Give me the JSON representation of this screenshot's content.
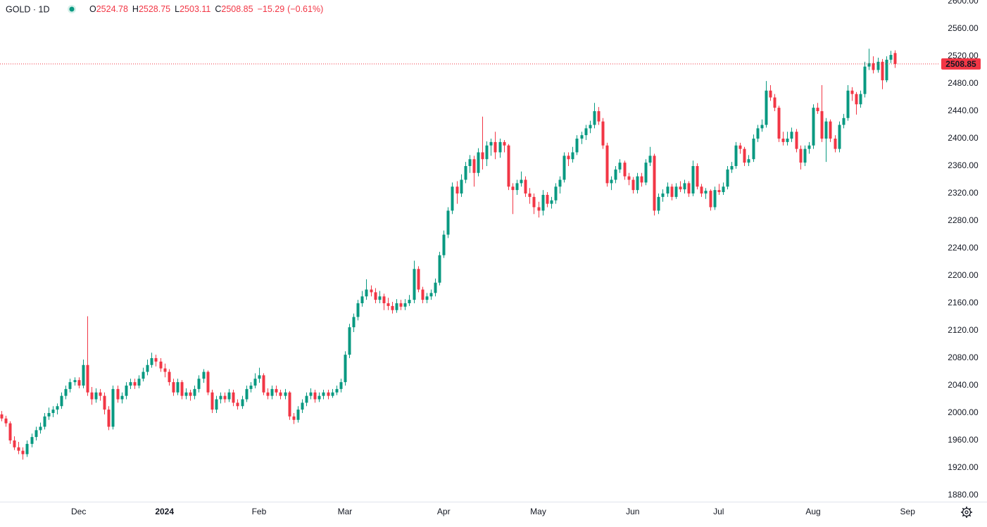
{
  "chart_data": {
    "type": "candlestick",
    "ohlc_legend": {
      "symbol": "GOLD · 1D",
      "items": [
        {
          "label": "O",
          "value": 2524.78
        },
        {
          "label": "H",
          "value": 2528.75
        },
        {
          "label": "L",
          "value": 2503.11
        },
        {
          "label": "C",
          "value": 2508.85
        }
      ],
      "change": "−15.29",
      "change_pct": "(−0.61%)"
    },
    "up_color": "#089981",
    "down_color": "#f23645",
    "grid": false,
    "last_price": 2508.85,
    "last_price_color": "#f23645",
    "ylim": [
      1880,
      2600
    ],
    "yticks": [
      {
        "value": 1880,
        "label": "1880.00"
      },
      {
        "value": 1920,
        "label": "1920.00"
      },
      {
        "value": 1960,
        "label": "1960.00"
      },
      {
        "value": 2000,
        "label": "2000.00"
      },
      {
        "value": 2040,
        "label": "2040.00"
      },
      {
        "value": 2080,
        "label": "2080.00"
      },
      {
        "value": 2120,
        "label": "2120.00"
      },
      {
        "value": 2160,
        "label": "2160.00"
      },
      {
        "value": 2200,
        "label": "2200.00"
      },
      {
        "value": 2240,
        "label": "2240.00"
      },
      {
        "value": 2280,
        "label": "2280.00"
      },
      {
        "value": 2320,
        "label": "2320.00"
      },
      {
        "value": 2360,
        "label": "2360.00"
      },
      {
        "value": 2400,
        "label": "2400.00"
      },
      {
        "value": 2440,
        "label": "2440.00"
      },
      {
        "value": 2480,
        "label": "2480.00"
      },
      {
        "value": 2520,
        "label": "2520.00"
      },
      {
        "value": 2560,
        "label": "2560.00"
      },
      {
        "value": 2600,
        "label": "2600.00"
      }
    ],
    "xlim": [
      -0.3,
      218.5
    ],
    "xticks": [
      {
        "value": 18,
        "label": "Dec"
      },
      {
        "value": 38,
        "label": "2024"
      },
      {
        "value": 60,
        "label": "Feb"
      },
      {
        "value": 80,
        "label": "Mar"
      },
      {
        "value": 103,
        "label": "Apr"
      },
      {
        "value": 125,
        "label": "May"
      },
      {
        "value": 147,
        "label": "Jun"
      },
      {
        "value": 167,
        "label": "Jul"
      },
      {
        "value": 189,
        "label": "Aug"
      },
      {
        "value": 211,
        "label": "Sep"
      }
    ],
    "ohlc": [
      [
        1998,
        2003,
        1988,
        1992
      ],
      [
        1992,
        1996,
        1980,
        1985
      ],
      [
        1985,
        1988,
        1955,
        1960
      ],
      [
        1960,
        1966,
        1946,
        1950
      ],
      [
        1950,
        1958,
        1940,
        1945
      ],
      [
        1945,
        1950,
        1932,
        1940
      ],
      [
        1940,
        1960,
        1936,
        1955
      ],
      [
        1955,
        1970,
        1950,
        1965
      ],
      [
        1965,
        1980,
        1960,
        1975
      ],
      [
        1975,
        1986,
        1970,
        1980
      ],
      [
        1980,
        2000,
        1976,
        1995
      ],
      [
        1995,
        2008,
        1990,
        2000
      ],
      [
        2000,
        2010,
        1994,
        2005
      ],
      [
        2005,
        2014,
        1998,
        2010
      ],
      [
        2010,
        2030,
        2006,
        2025
      ],
      [
        2025,
        2040,
        2020,
        2035
      ],
      [
        2035,
        2050,
        2030,
        2045
      ],
      [
        2045,
        2052,
        2040,
        2048
      ],
      [
        2048,
        2052,
        2036,
        2040
      ],
      [
        2040,
        2078,
        2036,
        2070
      ],
      [
        2070,
        2141,
        2025,
        2030
      ],
      [
        2030,
        2038,
        2012,
        2020
      ],
      [
        2020,
        2036,
        2015,
        2030
      ],
      [
        2030,
        2035,
        2018,
        2025
      ],
      [
        2025,
        2030,
        1998,
        2005
      ],
      [
        2005,
        2010,
        1975,
        1980
      ],
      [
        1980,
        2040,
        1976,
        2035
      ],
      [
        2035,
        2040,
        2015,
        2020
      ],
      [
        2020,
        2030,
        2014,
        2025
      ],
      [
        2025,
        2045,
        2020,
        2040
      ],
      [
        2040,
        2050,
        2035,
        2045
      ],
      [
        2045,
        2050,
        2035,
        2040
      ],
      [
        2040,
        2055,
        2036,
        2050
      ],
      [
        2050,
        2066,
        2046,
        2060
      ],
      [
        2060,
        2078,
        2055,
        2070
      ],
      [
        2070,
        2088,
        2066,
        2080
      ],
      [
        2080,
        2085,
        2068,
        2075
      ],
      [
        2075,
        2080,
        2060,
        2065
      ],
      [
        2065,
        2072,
        2052,
        2060
      ],
      [
        2060,
        2064,
        2040,
        2045
      ],
      [
        2045,
        2050,
        2025,
        2030
      ],
      [
        2030,
        2050,
        2026,
        2045
      ],
      [
        2045,
        2048,
        2020,
        2025
      ],
      [
        2025,
        2036,
        2020,
        2030
      ],
      [
        2030,
        2034,
        2018,
        2025
      ],
      [
        2025,
        2040,
        2020,
        2035
      ],
      [
        2035,
        2055,
        2030,
        2050
      ],
      [
        2050,
        2064,
        2044,
        2060
      ],
      [
        2060,
        2062,
        2026,
        2030
      ],
      [
        2030,
        2034,
        2000,
        2005
      ],
      [
        2005,
        2025,
        2000,
        2020
      ],
      [
        2020,
        2030,
        2014,
        2025
      ],
      [
        2025,
        2030,
        2015,
        2020
      ],
      [
        2020,
        2035,
        2016,
        2030
      ],
      [
        2030,
        2034,
        2010,
        2015
      ],
      [
        2015,
        2020,
        2005,
        2010
      ],
      [
        2010,
        2025,
        2006,
        2020
      ],
      [
        2020,
        2040,
        2016,
        2035
      ],
      [
        2035,
        2045,
        2030,
        2040
      ],
      [
        2040,
        2058,
        2036,
        2050
      ],
      [
        2050,
        2066,
        2044,
        2055
      ],
      [
        2055,
        2058,
        2026,
        2030
      ],
      [
        2030,
        2036,
        2020,
        2025
      ],
      [
        2025,
        2040,
        2020,
        2035
      ],
      [
        2035,
        2040,
        2025,
        2030
      ],
      [
        2030,
        2034,
        2020,
        2025
      ],
      [
        2025,
        2035,
        2020,
        2030
      ],
      [
        2030,
        2032,
        1990,
        1995
      ],
      [
        1995,
        2000,
        1984,
        1990
      ],
      [
        1990,
        2010,
        1986,
        2005
      ],
      [
        2005,
        2020,
        2000,
        2015
      ],
      [
        2015,
        2030,
        2010,
        2025
      ],
      [
        2025,
        2036,
        2020,
        2030
      ],
      [
        2030,
        2034,
        2015,
        2020
      ],
      [
        2020,
        2030,
        2016,
        2025
      ],
      [
        2025,
        2034,
        2020,
        2030
      ],
      [
        2030,
        2034,
        2020,
        2025
      ],
      [
        2025,
        2035,
        2022,
        2030
      ],
      [
        2030,
        2040,
        2026,
        2035
      ],
      [
        2035,
        2050,
        2030,
        2045
      ],
      [
        2045,
        2090,
        2040,
        2085
      ],
      [
        2085,
        2130,
        2080,
        2125
      ],
      [
        2125,
        2145,
        2118,
        2140
      ],
      [
        2140,
        2165,
        2135,
        2160
      ],
      [
        2160,
        2178,
        2155,
        2170
      ],
      [
        2170,
        2195,
        2165,
        2180
      ],
      [
        2180,
        2186,
        2170,
        2176
      ],
      [
        2176,
        2182,
        2160,
        2165
      ],
      [
        2165,
        2178,
        2160,
        2170
      ],
      [
        2170,
        2174,
        2150,
        2160
      ],
      [
        2160,
        2168,
        2150,
        2156
      ],
      [
        2156,
        2162,
        2145,
        2150
      ],
      [
        2150,
        2166,
        2146,
        2160
      ],
      [
        2160,
        2165,
        2150,
        2155
      ],
      [
        2155,
        2166,
        2150,
        2160
      ],
      [
        2160,
        2172,
        2156,
        2165
      ],
      [
        2165,
        2222,
        2160,
        2210
      ],
      [
        2210,
        2214,
        2176,
        2180
      ],
      [
        2180,
        2184,
        2160,
        2165
      ],
      [
        2165,
        2175,
        2160,
        2170
      ],
      [
        2170,
        2180,
        2165,
        2175
      ],
      [
        2175,
        2196,
        2170,
        2190
      ],
      [
        2190,
        2235,
        2186,
        2230
      ],
      [
        2230,
        2266,
        2226,
        2260
      ],
      [
        2260,
        2300,
        2255,
        2295
      ],
      [
        2295,
        2336,
        2290,
        2330
      ],
      [
        2330,
        2338,
        2305,
        2320
      ],
      [
        2320,
        2348,
        2315,
        2340
      ],
      [
        2340,
        2366,
        2335,
        2360
      ],
      [
        2360,
        2376,
        2350,
        2370
      ],
      [
        2370,
        2375,
        2330,
        2350
      ],
      [
        2350,
        2386,
        2345,
        2380
      ],
      [
        2380,
        2432,
        2355,
        2370
      ],
      [
        2370,
        2396,
        2360,
        2390
      ],
      [
        2390,
        2400,
        2375,
        2395
      ],
      [
        2395,
        2410,
        2370,
        2380
      ],
      [
        2380,
        2400,
        2372,
        2395
      ],
      [
        2395,
        2398,
        2380,
        2390
      ],
      [
        2390,
        2392,
        2325,
        2330
      ],
      [
        2330,
        2335,
        2290,
        2325
      ],
      [
        2325,
        2340,
        2318,
        2335
      ],
      [
        2335,
        2352,
        2330,
        2340
      ],
      [
        2340,
        2345,
        2315,
        2320
      ],
      [
        2320,
        2328,
        2305,
        2315
      ],
      [
        2315,
        2320,
        2290,
        2300
      ],
      [
        2300,
        2308,
        2285,
        2295
      ],
      [
        2295,
        2325,
        2288,
        2318
      ],
      [
        2318,
        2322,
        2300,
        2305
      ],
      [
        2305,
        2315,
        2298,
        2310
      ],
      [
        2310,
        2335,
        2305,
        2330
      ],
      [
        2330,
        2345,
        2320,
        2340
      ],
      [
        2340,
        2380,
        2336,
        2375
      ],
      [
        2375,
        2380,
        2360,
        2370
      ],
      [
        2370,
        2388,
        2365,
        2380
      ],
      [
        2380,
        2405,
        2376,
        2400
      ],
      [
        2400,
        2410,
        2392,
        2405
      ],
      [
        2405,
        2420,
        2398,
        2415
      ],
      [
        2415,
        2426,
        2408,
        2420
      ],
      [
        2420,
        2452,
        2415,
        2440
      ],
      [
        2440,
        2446,
        2420,
        2425
      ],
      [
        2425,
        2430,
        2385,
        2390
      ],
      [
        2390,
        2394,
        2330,
        2335
      ],
      [
        2335,
        2345,
        2325,
        2340
      ],
      [
        2340,
        2360,
        2335,
        2355
      ],
      [
        2355,
        2370,
        2350,
        2365
      ],
      [
        2365,
        2368,
        2340,
        2345
      ],
      [
        2345,
        2350,
        2332,
        2340
      ],
      [
        2340,
        2344,
        2320,
        2325
      ],
      [
        2325,
        2350,
        2320,
        2345
      ],
      [
        2345,
        2350,
        2330,
        2336
      ],
      [
        2336,
        2370,
        2332,
        2365
      ],
      [
        2365,
        2388,
        2360,
        2375
      ],
      [
        2375,
        2378,
        2288,
        2295
      ],
      [
        2295,
        2320,
        2290,
        2315
      ],
      [
        2315,
        2326,
        2308,
        2320
      ],
      [
        2320,
        2336,
        2315,
        2330
      ],
      [
        2330,
        2334,
        2310,
        2315
      ],
      [
        2315,
        2335,
        2312,
        2330
      ],
      [
        2330,
        2338,
        2322,
        2326
      ],
      [
        2326,
        2340,
        2320,
        2335
      ],
      [
        2335,
        2338,
        2315,
        2320
      ],
      [
        2320,
        2368,
        2316,
        2360
      ],
      [
        2360,
        2364,
        2326,
        2330
      ],
      [
        2330,
        2334,
        2315,
        2320
      ],
      [
        2320,
        2328,
        2312,
        2324
      ],
      [
        2324,
        2326,
        2295,
        2300
      ],
      [
        2300,
        2330,
        2296,
        2325
      ],
      [
        2325,
        2334,
        2318,
        2322
      ],
      [
        2322,
        2336,
        2318,
        2330
      ],
      [
        2330,
        2360,
        2326,
        2355
      ],
      [
        2355,
        2366,
        2350,
        2360
      ],
      [
        2360,
        2395,
        2356,
        2390
      ],
      [
        2390,
        2394,
        2378,
        2385
      ],
      [
        2385,
        2388,
        2360,
        2365
      ],
      [
        2365,
        2376,
        2360,
        2370
      ],
      [
        2370,
        2406,
        2366,
        2400
      ],
      [
        2400,
        2420,
        2395,
        2415
      ],
      [
        2415,
        2428,
        2410,
        2420
      ],
      [
        2420,
        2484,
        2416,
        2470
      ],
      [
        2470,
        2478,
        2455,
        2460
      ],
      [
        2460,
        2465,
        2440,
        2445
      ],
      [
        2445,
        2448,
        2395,
        2400
      ],
      [
        2400,
        2410,
        2390,
        2395
      ],
      [
        2395,
        2410,
        2390,
        2400
      ],
      [
        2400,
        2416,
        2395,
        2410
      ],
      [
        2410,
        2414,
        2380,
        2385
      ],
      [
        2385,
        2390,
        2355,
        2365
      ],
      [
        2365,
        2390,
        2360,
        2385
      ],
      [
        2385,
        2395,
        2378,
        2390
      ],
      [
        2390,
        2450,
        2385,
        2445
      ],
      [
        2445,
        2452,
        2436,
        2440
      ],
      [
        2440,
        2478,
        2395,
        2400
      ],
      [
        2400,
        2430,
        2366,
        2425
      ],
      [
        2425,
        2428,
        2395,
        2400
      ],
      [
        2400,
        2405,
        2380,
        2385
      ],
      [
        2385,
        2425,
        2380,
        2420
      ],
      [
        2420,
        2436,
        2415,
        2430
      ],
      [
        2430,
        2478,
        2426,
        2470
      ],
      [
        2470,
        2475,
        2455,
        2465
      ],
      [
        2465,
        2468,
        2435,
        2450
      ],
      [
        2450,
        2470,
        2445,
        2465
      ],
      [
        2465,
        2512,
        2460,
        2505
      ],
      [
        2505,
        2531,
        2500,
        2510
      ],
      [
        2510,
        2520,
        2495,
        2500
      ],
      [
        2500,
        2518,
        2496,
        2512
      ],
      [
        2512,
        2516,
        2472,
        2485
      ],
      [
        2485,
        2520,
        2482,
        2515
      ],
      [
        2515,
        2528,
        2510,
        2522
      ],
      [
        2524.78,
        2528.75,
        2503.11,
        2508.85
      ]
    ]
  }
}
